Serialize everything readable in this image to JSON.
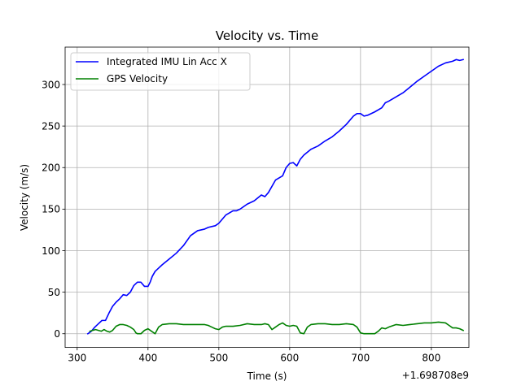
{
  "chart_data": {
    "type": "line",
    "title": "Velocity vs. Time",
    "xlabel": "Time (s)",
    "ylabel": "Velocity (m/s)",
    "x_offset_label": "+1.698708e9",
    "xlim": [
      283,
      853
    ],
    "ylim": [
      -16.5,
      345
    ],
    "xticks": [
      300,
      400,
      500,
      600,
      700,
      800
    ],
    "yticks": [
      0,
      50,
      100,
      150,
      200,
      250,
      300
    ],
    "grid": true,
    "legend_position": "upper-left",
    "series": [
      {
        "name": "Integrated IMU Lin Acc X",
        "color": "#0000ff",
        "x": [
          315,
          320,
          325,
          330,
          335,
          340,
          345,
          350,
          355,
          360,
          365,
          370,
          375,
          380,
          385,
          390,
          395,
          400,
          403,
          406,
          410,
          415,
          420,
          430,
          440,
          450,
          460,
          470,
          480,
          485,
          490,
          495,
          500,
          510,
          520,
          525,
          530,
          540,
          550,
          560,
          565,
          570,
          580,
          590,
          595,
          600,
          605,
          610,
          615,
          620,
          630,
          640,
          650,
          660,
          670,
          680,
          690,
          695,
          700,
          705,
          710,
          720,
          730,
          735,
          740,
          750,
          760,
          770,
          780,
          790,
          800,
          810,
          820,
          830,
          835,
          840,
          845
        ],
        "y": [
          0,
          3,
          8,
          12,
          16,
          16,
          25,
          33,
          38,
          42,
          47,
          46,
          50,
          58,
          62,
          62,
          57,
          57,
          62,
          69,
          75,
          79,
          83,
          90,
          97,
          106,
          118,
          124,
          126,
          128,
          129,
          130,
          133,
          143,
          148,
          148,
          150,
          156,
          160,
          167,
          165,
          170,
          185,
          190,
          200,
          205,
          206,
          202,
          210,
          215,
          222,
          226,
          232,
          237,
          244,
          252,
          262,
          265,
          265,
          262,
          263,
          267,
          272,
          278,
          280,
          285,
          290,
          297,
          304,
          310,
          316,
          322,
          326,
          328,
          330,
          329,
          330
        ]
      },
      {
        "name": "GPS Velocity",
        "color": "#008000",
        "x": [
          318,
          322,
          326,
          330,
          334,
          338,
          342,
          346,
          350,
          355,
          360,
          365,
          370,
          375,
          380,
          383,
          385,
          390,
          395,
          400,
          405,
          410,
          415,
          420,
          430,
          440,
          450,
          460,
          470,
          480,
          485,
          490,
          495,
          500,
          505,
          510,
          520,
          530,
          540,
          550,
          560,
          565,
          570,
          575,
          580,
          585,
          590,
          595,
          600,
          605,
          610,
          615,
          620,
          625,
          630,
          640,
          650,
          660,
          670,
          680,
          690,
          695,
          700,
          705,
          710,
          720,
          725,
          730,
          735,
          740,
          750,
          760,
          770,
          780,
          790,
          800,
          810,
          820,
          825,
          830,
          835,
          840,
          845
        ],
        "y": [
          3,
          4,
          5,
          4,
          3,
          5,
          3,
          2,
          4,
          9,
          11,
          11,
          10,
          8,
          5,
          1,
          0,
          0,
          4,
          6,
          3,
          0,
          8,
          11,
          12,
          12,
          11,
          11,
          11,
          11,
          10,
          8,
          6,
          5,
          8,
          9,
          9,
          10,
          12,
          11,
          11,
          12,
          11,
          5,
          8,
          11,
          13,
          10,
          9,
          10,
          9,
          1,
          0,
          8,
          11,
          12,
          12,
          11,
          11,
          12,
          11,
          8,
          1,
          0,
          0,
          0,
          3,
          7,
          6,
          8,
          11,
          10,
          11,
          12,
          13,
          13,
          14,
          13,
          10,
          7,
          7,
          6,
          4
        ]
      }
    ]
  }
}
